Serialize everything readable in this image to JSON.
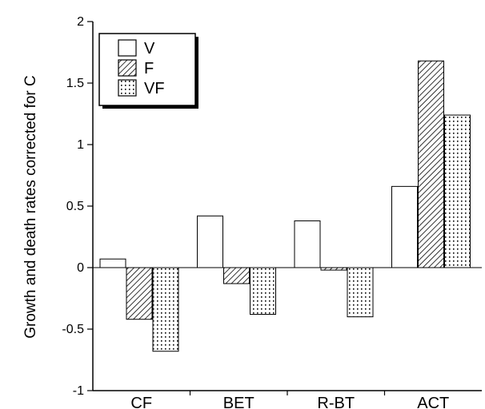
{
  "chart_data": {
    "type": "bar",
    "title": "",
    "xlabel": "",
    "ylabel": "Growth and death rates corrected for C",
    "ylim": [
      -1,
      2
    ],
    "yticks": [
      "-1",
      "-0.5",
      "0",
      "0.5",
      "1",
      "1.5",
      "2"
    ],
    "categories": [
      "CF",
      "BET",
      "R-BT",
      "ACT"
    ],
    "series": [
      {
        "name": "V",
        "values": [
          0.07,
          0.42,
          0.38,
          0.66
        ],
        "pattern": "white"
      },
      {
        "name": "F",
        "values": [
          -0.42,
          -0.13,
          -0.02,
          1.68
        ],
        "pattern": "hatch"
      },
      {
        "name": "VF",
        "values": [
          -0.68,
          -0.38,
          -0.4,
          1.24
        ],
        "pattern": "dots"
      }
    ],
    "legend_position": "top-left",
    "grid": false
  }
}
